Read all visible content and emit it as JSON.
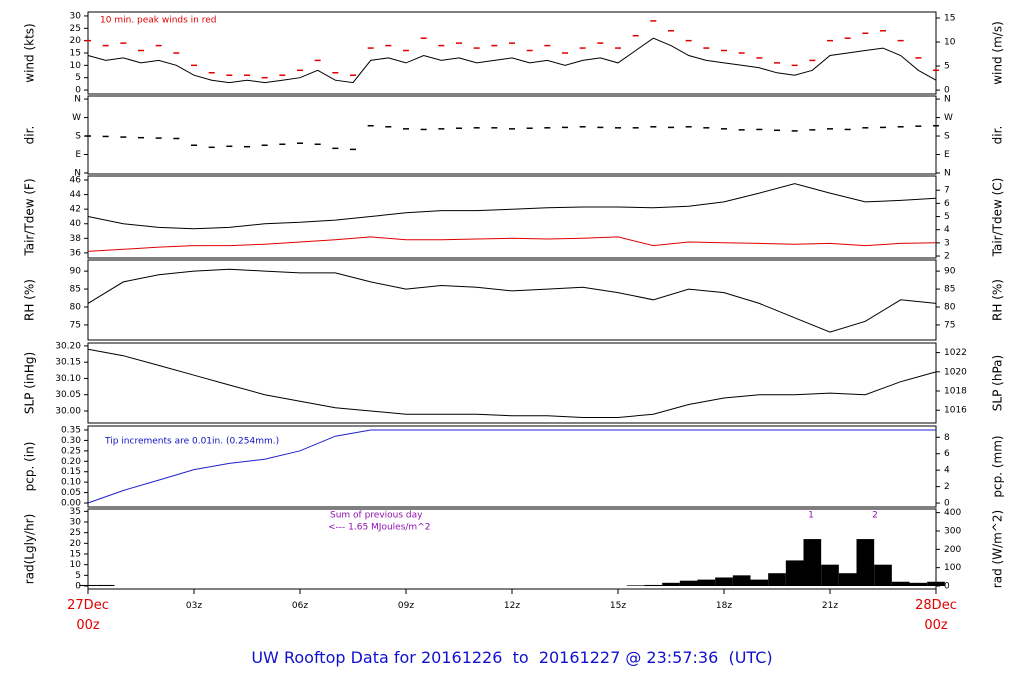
{
  "title": "UW Rooftop Data for 20161226  to  20161227 @ 23:57:36  (UTC)",
  "chart_data": [
    {
      "type": "line",
      "ylabel": "wind (kts)",
      "y2label": "wind (m/s)",
      "annotations": [
        "10 min. peak winds in red"
      ],
      "annotation_color": "#e00000",
      "x": [
        0,
        0.5,
        1,
        1.5,
        2,
        2.5,
        3,
        3.5,
        4,
        4.5,
        5,
        5.5,
        6,
        6.5,
        7,
        7.5,
        8,
        8.5,
        9,
        9.5,
        10,
        10.5,
        11,
        11.5,
        12,
        12.5,
        13,
        13.5,
        14,
        14.5,
        15,
        15.5,
        16,
        16.5,
        17,
        17.5,
        18,
        18.5,
        19,
        19.5,
        20,
        20.5,
        21,
        21.5,
        22,
        22.5,
        23,
        23.5,
        24
      ],
      "series": [
        {
          "color": "#000000",
          "values": [
            14,
            12,
            13,
            11,
            12,
            10,
            6,
            4,
            3,
            4,
            3,
            4,
            5,
            8,
            4,
            3,
            12,
            13,
            11,
            14,
            12,
            13,
            11,
            12,
            13,
            11,
            12,
            10,
            12,
            13,
            11,
            16,
            21,
            18,
            14,
            12,
            11,
            10,
            9,
            7,
            6,
            8,
            14,
            15,
            16,
            17,
            14,
            8,
            4
          ]
        },
        {
          "color": "#e00000",
          "marker": "dash",
          "values": [
            20,
            18,
            19,
            16,
            18,
            15,
            10,
            7,
            6,
            6,
            5,
            6,
            8,
            12,
            7,
            6,
            17,
            18,
            16,
            21,
            18,
            19,
            17,
            18,
            19,
            16,
            18,
            15,
            17,
            19,
            17,
            22,
            28,
            24,
            20,
            17,
            16,
            15,
            13,
            11,
            10,
            12,
            20,
            21,
            23,
            24,
            20,
            13,
            8
          ]
        }
      ],
      "xlim": [
        0,
        24
      ],
      "ylim": [
        -1.6,
        31.6
      ],
      "yticks": [
        0,
        5,
        10,
        15,
        20,
        25,
        30
      ],
      "y2lim": [
        -0.82,
        16.25
      ],
      "y2ticks": [
        0,
        5,
        10,
        15
      ]
    },
    {
      "type": "scatter",
      "ylabel": "dir.",
      "y2label": "dir.",
      "x": [
        0,
        0.5,
        1,
        1.5,
        2,
        2.5,
        3,
        3.5,
        4,
        4.5,
        5,
        5.5,
        6,
        6.5,
        7,
        7.5,
        8,
        8.5,
        9,
        9.5,
        10,
        10.5,
        11,
        11.5,
        12,
        12.5,
        13,
        13.5,
        14,
        14.5,
        15,
        15.5,
        16,
        16.5,
        17,
        17.5,
        18,
        18.5,
        19,
        19.5,
        20,
        20.5,
        21,
        21.5,
        22,
        22.5,
        23,
        23.5,
        24
      ],
      "series": [
        {
          "color": "#000000",
          "marker": "dash",
          "values": [
            180,
            178,
            175,
            172,
            170,
            168,
            135,
            125,
            130,
            128,
            135,
            140,
            145,
            140,
            120,
            115,
            230,
            225,
            215,
            212,
            215,
            218,
            220,
            220,
            215,
            218,
            220,
            222,
            225,
            222,
            220,
            220,
            225,
            222,
            225,
            220,
            215,
            210,
            212,
            208,
            205,
            210,
            215,
            212,
            220,
            222,
            225,
            228,
            230
          ]
        }
      ],
      "xlim": [
        0,
        24
      ],
      "ylim": [
        -5,
        375
      ],
      "yticks": [
        {
          "value": 0,
          "label": "N"
        },
        {
          "value": 90,
          "label": "E"
        },
        {
          "value": 180,
          "label": "S"
        },
        {
          "value": 270,
          "label": "W"
        },
        {
          "value": 360,
          "label": "N"
        }
      ],
      "y2lim": [
        -5,
        375
      ],
      "y2ticks": [
        {
          "value": 0,
          "label": "N"
        },
        {
          "value": 90,
          "label": "E"
        },
        {
          "value": 180,
          "label": "S"
        },
        {
          "value": 270,
          "label": "W"
        },
        {
          "value": 360,
          "label": "N"
        }
      ]
    },
    {
      "type": "line",
      "ylabel": "Tair/Tdew (F)",
      "y2label": "Tair/Tdew (C)",
      "x": [
        0,
        1,
        2,
        3,
        4,
        5,
        6,
        7,
        8,
        9,
        10,
        11,
        12,
        13,
        14,
        15,
        16,
        17,
        18,
        19,
        20,
        21,
        22,
        23,
        24
      ],
      "series": [
        {
          "color": "#000000",
          "values": [
            41,
            40,
            39.5,
            39.3,
            39.5,
            40,
            40.2,
            40.5,
            41,
            41.5,
            41.8,
            41.8,
            42,
            42.2,
            42.3,
            42.3,
            42.2,
            42.4,
            43,
            44.2,
            45.5,
            44.2,
            43,
            43.2,
            43.5
          ]
        },
        {
          "color": "#e00000",
          "values": [
            36.2,
            36.5,
            36.8,
            37,
            37,
            37.2,
            37.5,
            37.8,
            38.2,
            37.8,
            37.8,
            37.9,
            38,
            37.9,
            38,
            38.2,
            37,
            37.5,
            37.4,
            37.3,
            37.2,
            37.3,
            37,
            37.3,
            37.4
          ]
        }
      ],
      "xlim": [
        0,
        24
      ],
      "ylim": [
        35.3,
        46.55
      ],
      "yticks": [
        36,
        38,
        40,
        42,
        44,
        46
      ],
      "y2lim": [
        1.85,
        8.08
      ],
      "y2ticks": [
        2,
        3,
        4,
        5,
        6,
        7
      ]
    },
    {
      "type": "line",
      "ylabel": "RH (%)",
      "y2label": "RH (%)",
      "x": [
        0,
        1,
        2,
        3,
        4,
        5,
        6,
        7,
        8,
        9,
        10,
        11,
        12,
        13,
        14,
        15,
        16,
        17,
        18,
        19,
        20,
        21,
        22,
        23,
        24
      ],
      "series": [
        {
          "color": "#000000",
          "values": [
            81,
            87,
            89,
            90,
            90.5,
            90,
            89.5,
            89.5,
            87,
            85,
            86,
            85.5,
            84.5,
            85,
            85.5,
            84,
            82,
            85,
            84,
            81,
            77,
            73,
            76,
            82,
            81
          ]
        }
      ],
      "xlim": [
        0,
        24
      ],
      "ylim": [
        70.8,
        93.1
      ],
      "yticks": [
        75,
        80,
        85,
        90
      ],
      "y2lim": [
        70.8,
        93.1
      ],
      "y2ticks": [
        75,
        80,
        85,
        90
      ]
    },
    {
      "type": "line",
      "ylabel": "SLP (inHg)",
      "y2label": "SLP (hPa)",
      "x": [
        0,
        1,
        2,
        3,
        4,
        5,
        6,
        7,
        8,
        9,
        10,
        11,
        12,
        13,
        14,
        15,
        16,
        17,
        18,
        19,
        20,
        21,
        22,
        23,
        24
      ],
      "series": [
        {
          "color": "#000000",
          "values": [
            30.19,
            30.17,
            30.14,
            30.11,
            30.08,
            30.05,
            30.03,
            30.01,
            30.0,
            29.99,
            29.99,
            29.99,
            29.985,
            29.985,
            29.98,
            29.98,
            29.99,
            30.02,
            30.04,
            30.05,
            30.05,
            30.055,
            30.05,
            30.09,
            30.12
          ]
        }
      ],
      "xlim": [
        0,
        24
      ],
      "ylim": [
        29.963,
        30.209
      ],
      "yticks": [
        {
          "value": 30,
          "label": "30.00"
        },
        {
          "value": 30.05,
          "label": "30.05"
        },
        {
          "value": 30.1,
          "label": "30.10"
        },
        {
          "value": 30.15,
          "label": "30.15"
        },
        {
          "value": 30.2,
          "label": "30.20"
        }
      ],
      "y2lim": [
        1014.67,
        1023.0
      ],
      "y2ticks": [
        1016,
        1018,
        1020,
        1022
      ]
    },
    {
      "type": "line",
      "ylabel": "pcp. (in)",
      "y2label": "pcp. (mm)",
      "annotations": [
        "Tip increments are 0.01in. (0.254mm.)"
      ],
      "annotation_color": "#1010c0",
      "x": [
        0,
        1,
        2,
        3,
        4,
        5,
        6,
        7,
        8,
        9,
        10,
        11,
        12,
        13,
        14,
        15,
        16,
        17,
        18,
        19,
        20,
        21,
        22,
        23,
        24
      ],
      "series": [
        {
          "color": "#2020d0",
          "values": [
            0,
            0.06,
            0.11,
            0.16,
            0.19,
            0.21,
            0.25,
            0.32,
            0.35,
            0.35,
            0.35,
            0.35,
            0.35,
            0.35,
            0.35,
            0.35,
            0.35,
            0.35,
            0.35,
            0.35,
            0.35,
            0.35,
            0.35,
            0.35,
            0.35
          ]
        }
      ],
      "xlim": [
        0,
        24
      ],
      "ylim": [
        -0.019,
        0.369
      ],
      "yticks": [
        {
          "value": 0,
          "label": "0.00"
        },
        {
          "value": 0.05,
          "label": "0.05"
        },
        {
          "value": 0.1,
          "label": "0.10"
        },
        {
          "value": 0.15,
          "label": "0.15"
        },
        {
          "value": 0.2,
          "label": "0.20"
        },
        {
          "value": 0.25,
          "label": "0.25"
        },
        {
          "value": 0.3,
          "label": "0.30"
        },
        {
          "value": 0.35,
          "label": "0.35"
        }
      ],
      "y2lim": [
        -0.48,
        9.37
      ],
      "y2ticks": [
        0,
        2,
        4,
        6,
        8
      ]
    },
    {
      "type": "bar",
      "ylabel": "rad(Lgly/hr)",
      "y2label": "rad (W/m^2)",
      "annotations": [
        "Sum of previous day",
        "<--- 1.65 MJoules/m^2",
        "1",
        "2"
      ],
      "annotation_color": "#9010b0",
      "x": [
        0,
        0.5,
        1,
        1.5,
        2,
        2.5,
        3,
        3.5,
        4,
        4.5,
        5,
        5.5,
        6,
        6.5,
        7,
        7.5,
        8,
        8.5,
        9,
        9.5,
        10,
        10.5,
        11,
        11.5,
        12,
        12.5,
        13,
        13.5,
        14,
        14.5,
        15,
        15.5,
        16,
        16.5,
        17,
        17.5,
        18,
        18.5,
        19,
        19.5,
        20,
        20.5,
        21,
        21.5,
        22,
        22.5,
        23,
        23.5,
        24
      ],
      "series": [
        {
          "color": "#000000",
          "values": [
            0.5,
            0.5,
            0,
            0,
            0,
            0,
            0,
            0,
            0,
            0,
            0,
            0,
            0,
            0,
            0,
            0,
            0,
            0,
            0,
            0,
            0,
            0,
            0,
            0,
            0,
            0,
            0,
            0,
            0,
            0,
            0,
            0.3,
            0.5,
            1.5,
            2.5,
            3,
            4,
            5,
            3,
            6,
            12,
            22,
            10,
            6,
            22,
            10,
            2,
            1.5,
            2
          ]
        }
      ],
      "xlim": [
        0,
        24
      ],
      "ylim": [
        -1.4,
        36.1
      ],
      "yticks": [
        0,
        5,
        10,
        15,
        20,
        25,
        30,
        35
      ],
      "y2lim": [
        -16.3,
        419.8
      ],
      "y2ticks": [
        0,
        100,
        200,
        300,
        400
      ],
      "xticks": [
        {
          "value": 0,
          "label": "27Dec\n00z"
        },
        {
          "value": 3,
          "label": "03z"
        },
        {
          "value": 6,
          "label": "06z"
        },
        {
          "value": 9,
          "label": "09z"
        },
        {
          "value": 12,
          "label": "12z"
        },
        {
          "value": 15,
          "label": "15z"
        },
        {
          "value": 18,
          "label": "18z"
        },
        {
          "value": 21,
          "label": "21z"
        },
        {
          "value": 24,
          "label": "28Dec\n00z"
        }
      ]
    }
  ]
}
